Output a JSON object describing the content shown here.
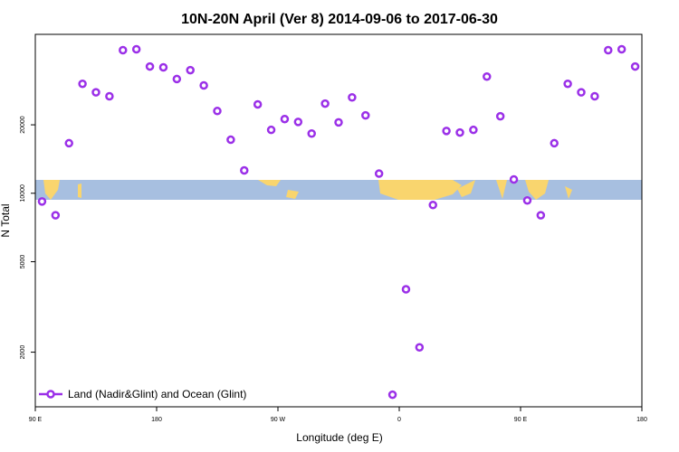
{
  "chart_data": {
    "type": "scatter",
    "title": "10N-20N April (Ver 8)   2014-09-06 to 2017-06-30",
    "xlabel": "Longitude (deg E)",
    "ylabel": "N Total",
    "log_y": true,
    "legend": "bottom-left",
    "xlim": [
      90,
      540
    ],
    "ylim": [
      1150,
      50000
    ],
    "xticks": [
      {
        "value": 90,
        "label": "90 E"
      },
      180,
      {
        "value": 270,
        "label": "90 W"
      },
      {
        "value": 360,
        "label": "0"
      },
      {
        "value": 450,
        "label": "90 E"
      },
      {
        "value": 540,
        "label": "180"
      }
    ],
    "yticks": [
      2000,
      5000,
      10000,
      20000
    ],
    "series": [
      {
        "name": "Land (Nadir&Glint) and Ocean (Glint)",
        "color": "#9b30e8",
        "x": [
          95,
          105,
          115,
          125,
          135,
          145,
          155,
          165,
          175,
          185,
          195,
          205,
          215,
          225,
          235,
          245,
          255,
          265,
          275,
          285,
          295,
          305,
          315,
          325,
          335,
          345,
          355,
          365,
          375,
          385,
          395,
          405,
          415,
          425,
          435,
          445,
          455,
          465,
          475,
          485,
          495,
          505,
          515,
          525,
          535
        ],
        "values": [
          9200,
          8000,
          16600,
          30300,
          27800,
          26700,
          42600,
          43000,
          36100,
          35800,
          31800,
          34800,
          29800,
          23000,
          17200,
          12600,
          24600,
          19000,
          21200,
          20600,
          18300,
          24800,
          20500,
          26400,
          22000,
          12200,
          1300,
          3780,
          2100,
          8880,
          18800,
          18500,
          19000,
          32600,
          21800,
          11500,
          9300,
          8000,
          16600,
          30300,
          27800,
          26700,
          42600,
          43000,
          36100
        ]
      }
    ]
  }
}
